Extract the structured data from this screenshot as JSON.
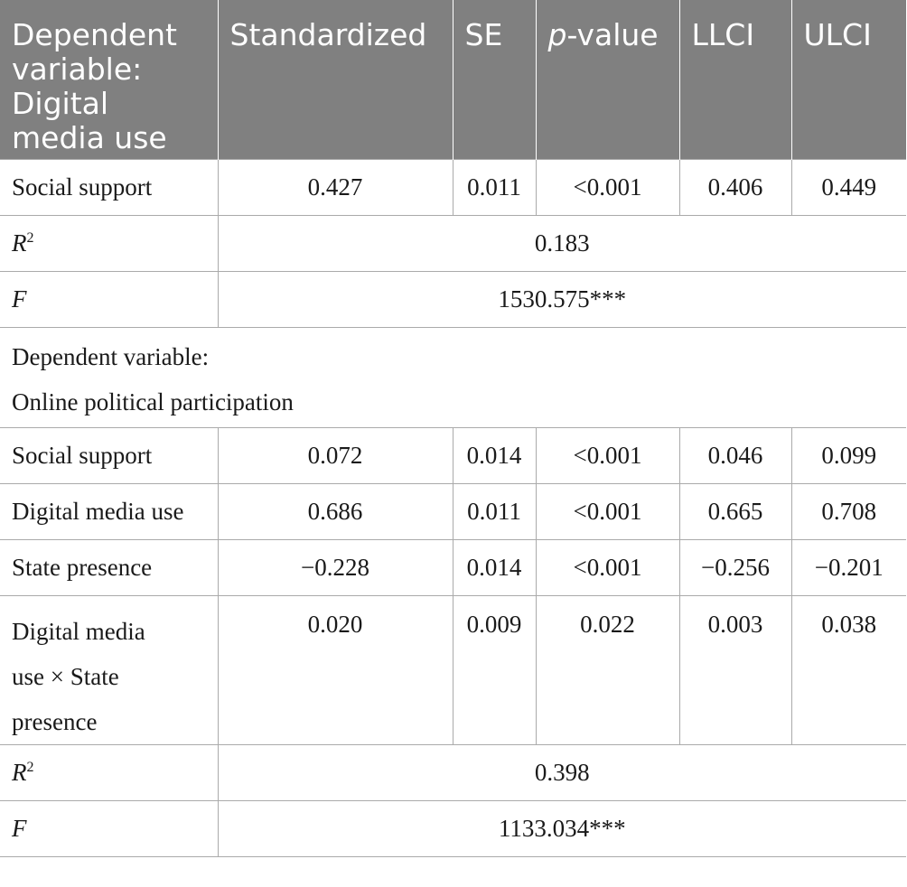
{
  "header": {
    "col0": "Dependent variable: Digital media use",
    "col1": "Standardized",
    "col2": "SE",
    "col3_italic": "p",
    "col3_rest": "-value",
    "col4": "LLCI",
    "col5": "ULCI"
  },
  "section1": {
    "row1": {
      "label": "Social support",
      "std": "0.427",
      "se": "0.011",
      "p": "<0.001",
      "llci": "0.406",
      "ulci": "0.449"
    },
    "r2": {
      "label": "R",
      "sup": "2",
      "value": "0.183"
    },
    "f": {
      "label": "F",
      "value": "1530.575***"
    }
  },
  "section2": {
    "title_line1": "Dependent variable:",
    "title_line2": "Online political participation",
    "rows": [
      {
        "label": "Social support",
        "std": "0.072",
        "se": "0.014",
        "p": "<0.001",
        "llci": "0.046",
        "ulci": "0.099"
      },
      {
        "label": "Digital media use",
        "std": "0.686",
        "se": "0.011",
        "p": "<0.001",
        "llci": "0.665",
        "ulci": "0.708"
      },
      {
        "label": "State presence",
        "std": "−0.228",
        "se": "0.014",
        "p": "<0.001",
        "llci": "−0.256",
        "ulci": "−0.201"
      },
      {
        "label_line1": "Digital media",
        "label_line2": "use × State",
        "label_line3": "presence",
        "std": "0.020",
        "se": "0.009",
        "p": "0.022",
        "llci": "0.003",
        "ulci": "0.038"
      }
    ],
    "r2": {
      "label": "R",
      "sup": "2",
      "value": "0.398"
    },
    "f": {
      "label": "F",
      "value": "1133.034***"
    }
  }
}
